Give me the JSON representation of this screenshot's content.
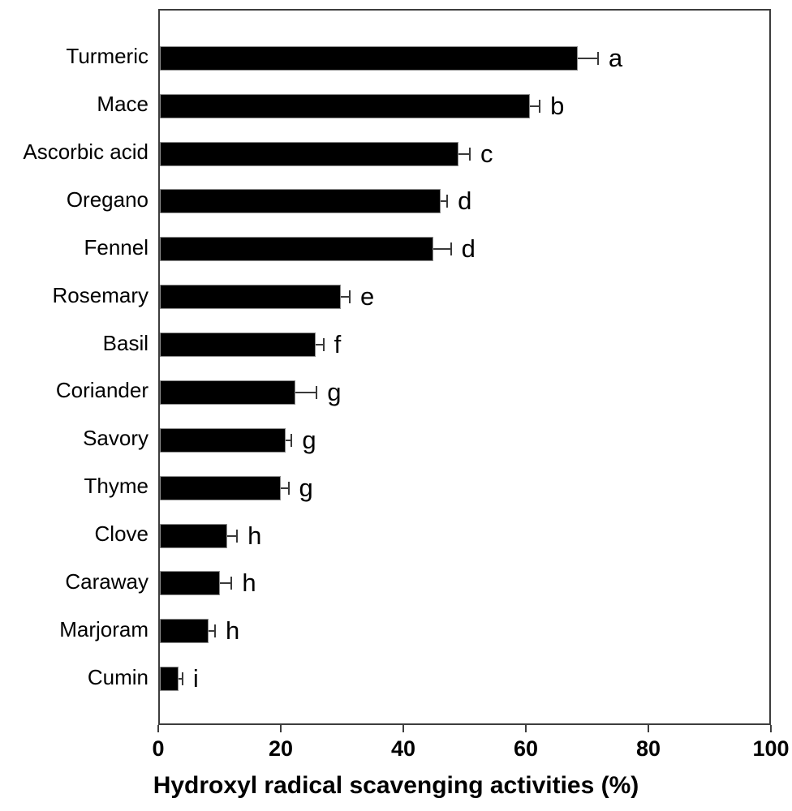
{
  "figure": {
    "background_color": "#ffffff",
    "bar_color": "#000000",
    "axis_color": "#3d3d3d",
    "text_color": "#000000"
  },
  "chart_data": {
    "type": "bar",
    "orientation": "horizontal",
    "title": "",
    "xlabel": "Hydroxyl radical scavenging activities (%)",
    "ylabel": "",
    "xlim": [
      0,
      100
    ],
    "x_ticks": [
      0,
      20,
      40,
      60,
      80,
      100
    ],
    "grid": false,
    "legend": false,
    "error_bars": "upper horizontal with end cap",
    "categories": [
      "Turmeric",
      "Mace",
      "Ascorbic acid",
      "Oregano",
      "Fennel",
      "Rosemary",
      "Basil",
      "Coriander",
      "Savory",
      "Thyme",
      "Clove",
      "Caraway",
      "Marjoram",
      "Cumin"
    ],
    "values": [
      68.2,
      60.4,
      48.8,
      45.8,
      44.7,
      29.5,
      25.4,
      22.1,
      20.5,
      19.8,
      11.0,
      9.8,
      7.9,
      3.1
    ],
    "errors": [
      3.3,
      1.6,
      1.8,
      1.1,
      2.8,
      1.5,
      1.3,
      3.5,
      1.0,
      1.2,
      1.6,
      1.9,
      1.1,
      0.6
    ],
    "sig_letters": [
      "a",
      "b",
      "c",
      "d",
      "d",
      "e",
      "f",
      "g",
      "g",
      "g",
      "h",
      "h",
      "h",
      "i"
    ]
  }
}
